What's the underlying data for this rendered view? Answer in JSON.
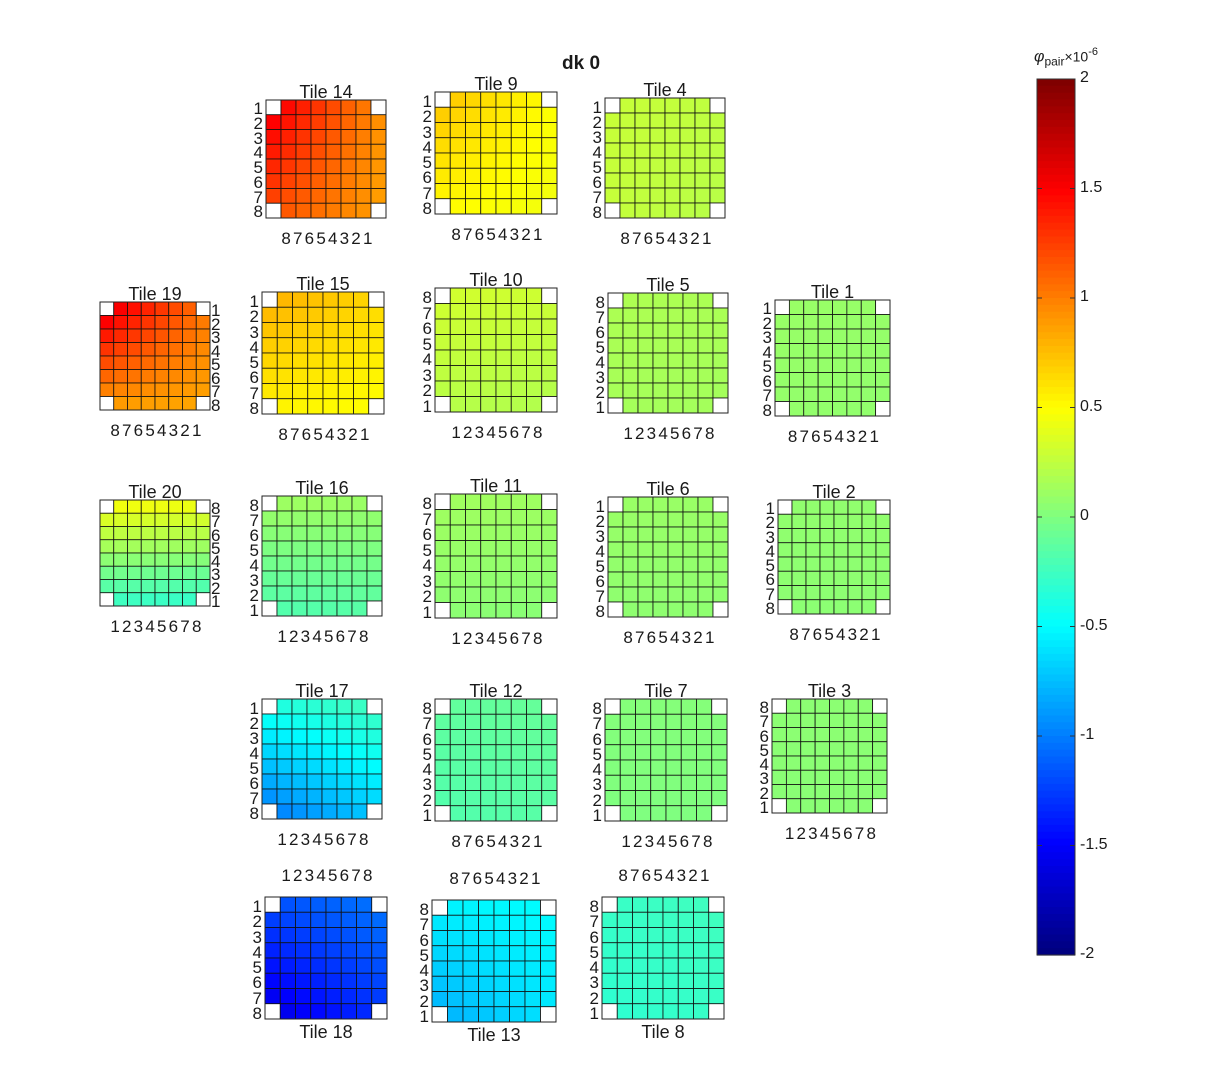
{
  "title": "dk 0",
  "chart_data": {
    "type": "heatmap",
    "grid": "8x8 pixels per tile, black grid lines, corner pixels empty",
    "colormap": "jet",
    "clim": [
      -2,
      2
    ],
    "colorbar": {
      "label": "φ",
      "label_sub": "pair",
      "multiplier": "×10",
      "exponent": "-6",
      "ticks": [
        2,
        1.5,
        1,
        0.5,
        0,
        -0.5,
        -1,
        -1.5,
        -2
      ],
      "tick_labels": [
        "2",
        "1.5",
        "1",
        "0.5",
        "0",
        "-0.5",
        "-1",
        "-1.5",
        "-2"
      ]
    },
    "tiles": [
      {
        "id": 14,
        "title": "Tile 14",
        "title_pos": "top",
        "x_labels": "87654321",
        "x_pos": "bottom",
        "y_labels": "12345678",
        "y_side": "left",
        "v_top_left": 1.55,
        "v_top_right": 0.95,
        "v_bottom_left": 1.2,
        "v_bottom_right": 0.88
      },
      {
        "id": 9,
        "title": "Tile 9",
        "title_pos": "top",
        "x_labels": "87654321",
        "x_pos": "bottom",
        "y_labels": "12345678",
        "y_side": "left",
        "v_top_left": 0.72,
        "v_top_right": 0.5,
        "v_bottom_left": 0.52,
        "v_bottom_right": 0.45
      },
      {
        "id": 4,
        "title": "Tile 4",
        "title_pos": "top",
        "x_labels": "87654321",
        "x_pos": "bottom",
        "y_labels": "12345678",
        "y_side": "left",
        "v_top_left": 0.28,
        "v_top_right": 0.25,
        "v_bottom_left": 0.27,
        "v_bottom_right": 0.22
      },
      {
        "id": 19,
        "title": "Tile 19",
        "title_pos": "top",
        "x_labels": "87654321",
        "x_pos": "bottom",
        "y_labels": "12345678",
        "y_side": "right",
        "v_top_left": 1.6,
        "v_top_right": 1.05,
        "v_bottom_left": 0.9,
        "v_bottom_right": 0.85
      },
      {
        "id": 15,
        "title": "Tile 15",
        "title_pos": "top",
        "x_labels": "87654321",
        "x_pos": "bottom",
        "y_labels": "12345678",
        "y_side": "left",
        "v_top_left": 0.8,
        "v_top_right": 0.65,
        "v_bottom_left": 0.55,
        "v_bottom_right": 0.5
      },
      {
        "id": 10,
        "title": "Tile 10",
        "title_pos": "top",
        "x_labels": "12345678",
        "x_pos": "bottom",
        "y_labels": "87654321",
        "y_side": "left",
        "v_top_left": 0.32,
        "v_top_right": 0.3,
        "v_bottom_left": 0.22,
        "v_bottom_right": 0.2
      },
      {
        "id": 5,
        "title": "Tile 5",
        "title_pos": "top",
        "x_labels": "12345678",
        "x_pos": "bottom",
        "y_labels": "87654321",
        "y_side": "left",
        "v_top_left": 0.18,
        "v_top_right": 0.17,
        "v_bottom_left": 0.15,
        "v_bottom_right": 0.14
      },
      {
        "id": 1,
        "title": "Tile 1",
        "title_pos": "top",
        "x_labels": "87654321",
        "x_pos": "bottom",
        "y_labels": "12345678",
        "y_side": "left",
        "v_top_left": 0.1,
        "v_top_right": 0.09,
        "v_bottom_left": 0.08,
        "v_bottom_right": 0.07
      },
      {
        "id": 20,
        "title": "Tile 20",
        "title_pos": "top",
        "x_labels": "12345678",
        "x_pos": "bottom",
        "y_labels": "87654321",
        "y_side": "right",
        "v_top_left": 0.45,
        "v_top_right": 0.42,
        "v_bottom_left": -0.25,
        "v_bottom_right": -0.28
      },
      {
        "id": 16,
        "title": "Tile 16",
        "title_pos": "top",
        "x_labels": "12345678",
        "x_pos": "bottom",
        "y_labels": "87654321",
        "y_side": "left",
        "v_top_left": 0.12,
        "v_top_right": 0.1,
        "v_bottom_left": -0.18,
        "v_bottom_right": -0.15
      },
      {
        "id": 11,
        "title": "Tile 11",
        "title_pos": "top",
        "x_labels": "12345678",
        "x_pos": "bottom",
        "y_labels": "87654321",
        "y_side": "left",
        "v_top_left": 0.13,
        "v_top_right": 0.12,
        "v_bottom_left": 0.05,
        "v_bottom_right": 0.04
      },
      {
        "id": 6,
        "title": "Tile 6",
        "title_pos": "top",
        "x_labels": "87654321",
        "x_pos": "bottom",
        "y_labels": "12345678",
        "y_side": "left",
        "v_top_left": 0.1,
        "v_top_right": 0.1,
        "v_bottom_left": 0.06,
        "v_bottom_right": 0.06
      },
      {
        "id": 2,
        "title": "Tile 2",
        "title_pos": "top",
        "x_labels": "87654321",
        "x_pos": "bottom",
        "y_labels": "12345678",
        "y_side": "left",
        "v_top_left": 0.07,
        "v_top_right": 0.07,
        "v_bottom_left": 0.05,
        "v_bottom_right": 0.05
      },
      {
        "id": 17,
        "title": "Tile 17",
        "title_pos": "top",
        "x_labels": "12345678",
        "x_pos": "bottom",
        "y_labels": "12345678",
        "y_side": "left",
        "v_top_left": -0.4,
        "v_top_right": -0.25,
        "v_bottom_left": -1.0,
        "v_bottom_right": -0.7
      },
      {
        "id": 12,
        "title": "Tile 12",
        "title_pos": "top",
        "x_labels": "87654321",
        "x_pos": "bottom",
        "y_labels": "87654321",
        "y_side": "left",
        "v_top_left": -0.12,
        "v_top_right": -0.1,
        "v_bottom_left": -0.18,
        "v_bottom_right": -0.15
      },
      {
        "id": 7,
        "title": "Tile 7",
        "title_pos": "top",
        "x_labels": "12345678",
        "x_pos": "bottom",
        "y_labels": "87654321",
        "y_side": "left",
        "v_top_left": 0.02,
        "v_top_right": 0.02,
        "v_bottom_left": 0.0,
        "v_bottom_right": 0.0
      },
      {
        "id": 3,
        "title": "Tile 3",
        "title_pos": "top",
        "x_labels": "12345678",
        "x_pos": "bottom",
        "y_labels": "87654321",
        "y_side": "left",
        "v_top_left": 0.05,
        "v_top_right": 0.05,
        "v_bottom_left": 0.04,
        "v_bottom_right": 0.04
      },
      {
        "id": 18,
        "title": "Tile 18",
        "title_pos": "bottom",
        "x_labels": "12345678",
        "x_pos": "top",
        "y_labels": "12345678",
        "y_side": "left",
        "v_top_left": -1.2,
        "v_top_right": -1.05,
        "v_bottom_left": -1.6,
        "v_bottom_right": -1.3
      },
      {
        "id": 13,
        "title": "Tile 13",
        "title_pos": "bottom",
        "x_labels": "87654321",
        "x_pos": "top",
        "y_labels": "87654321",
        "y_side": "left",
        "v_top_left": -0.55,
        "v_top_right": -0.5,
        "v_bottom_left": -0.8,
        "v_bottom_right": -0.6
      },
      {
        "id": 8,
        "title": "Tile 8",
        "title_pos": "bottom",
        "x_labels": "87654321",
        "x_pos": "top",
        "y_labels": "87654321",
        "y_side": "left",
        "v_top_left": -0.28,
        "v_top_right": -0.25,
        "v_bottom_left": -0.32,
        "v_bottom_right": -0.28
      }
    ]
  }
}
